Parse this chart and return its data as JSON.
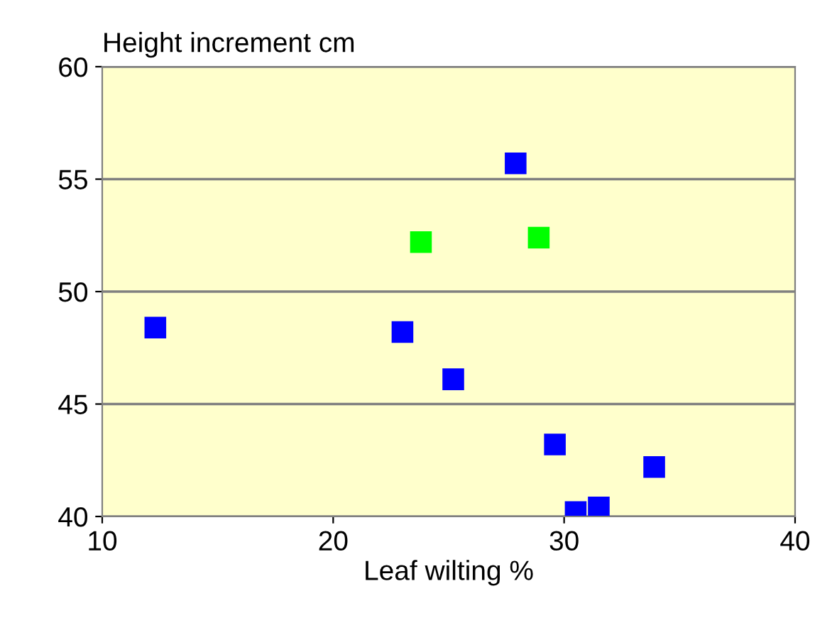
{
  "chart_data": {
    "type": "scatter",
    "xlabel": "Leaf wilting %",
    "ylabel": "Height increment cm",
    "series": [
      {
        "color": "#0000ff",
        "x": [
          12.3,
          23.0,
          25.2,
          27.9,
          29.6,
          30.5,
          31.5,
          33.9
        ],
        "values": [
          48.4,
          48.2,
          46.1,
          55.7,
          43.2,
          40.2,
          40.4,
          42.2
        ]
      },
      {
        "color": "#00ff00",
        "x": [
          23.8,
          28.9
        ],
        "values": [
          52.2,
          52.4
        ]
      }
    ],
    "xlim": [
      10,
      40
    ],
    "xticks": [
      10,
      20,
      30,
      40
    ],
    "ylim": [
      40,
      60
    ],
    "yticks": [
      40,
      45,
      50,
      55,
      60
    ],
    "grid": "y",
    "marker": "square",
    "legend": false
  }
}
